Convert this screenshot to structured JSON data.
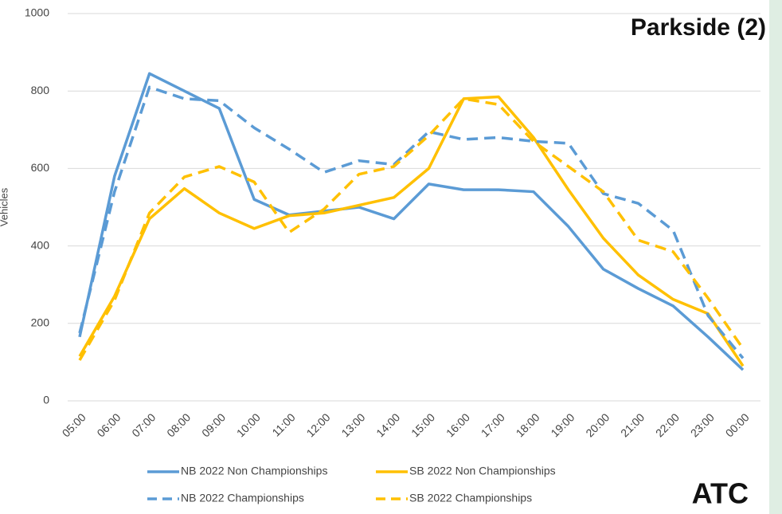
{
  "chart_data": {
    "type": "line",
    "y_label": "Vehicles",
    "annotations": [
      "Parkside (2)",
      "ATC"
    ],
    "categories": [
      "05:00",
      "06:00",
      "07:00",
      "08:00",
      "09:00",
      "10:00",
      "11:00",
      "12:00",
      "13:00",
      "14:00",
      "15:00",
      "16:00",
      "17:00",
      "18:00",
      "19:00",
      "20:00",
      "21:00",
      "22:00",
      "23:00",
      "00:00"
    ],
    "series": [
      {
        "name": "NB 2022 Non Championships",
        "color": "#5b9bd5",
        "style": "solid",
        "values": [
          165,
          580,
          845,
          800,
          755,
          520,
          480,
          490,
          500,
          470,
          560,
          545,
          545,
          540,
          450,
          340,
          290,
          245,
          165,
          80
        ]
      },
      {
        "name": "SB 2022 Non Championships",
        "color": "#ffc000",
        "style": "solid",
        "values": [
          115,
          270,
          470,
          548,
          485,
          445,
          478,
          485,
          505,
          525,
          600,
          780,
          785,
          680,
          545,
          420,
          325,
          262,
          225,
          90
        ]
      },
      {
        "name": "NB 2022 Championships",
        "color": "#5b9bd5",
        "style": "dashed",
        "values": [
          175,
          540,
          810,
          780,
          775,
          705,
          650,
          590,
          620,
          610,
          695,
          675,
          680,
          670,
          665,
          535,
          510,
          440,
          220,
          110
        ]
      },
      {
        "name": "SB 2022 Championships",
        "color": "#ffc000",
        "style": "dashed",
        "values": [
          105,
          260,
          485,
          578,
          605,
          565,
          435,
          495,
          585,
          605,
          685,
          780,
          765,
          670,
          605,
          540,
          415,
          385,
          265,
          135
        ]
      }
    ],
    "ylim": [
      0,
      1000
    ],
    "yticks": [
      0,
      200,
      400,
      600,
      800,
      1000
    ],
    "grid": true
  }
}
